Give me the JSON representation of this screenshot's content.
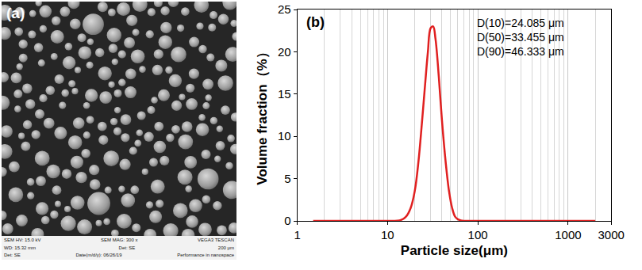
{
  "image_panel": {
    "label": "(a)",
    "type": "image",
    "info_bar": [
      [
        "SEM HV: 15.0 kV",
        "SEM MAG: 300 x",
        "VEGA3 TESCAN"
      ],
      [
        "WD: 15.32 mm",
        "Det: SE",
        "200 μm"
      ],
      [
        "Det: SE",
        "Date(m/d/y): 06/26/19",
        "Performance in nanospace"
      ]
    ]
  },
  "chart_data": {
    "type": "line",
    "title": "(b)",
    "x_label": "Particle size(μm)",
    "y_label": "Volume fraction（%）",
    "annotations": [
      "D(10)=24.085 μm",
      "D(50)=33.455 μm",
      "D(90)=46.333 μm"
    ],
    "x": [
      1.5,
      5,
      10,
      14,
      16,
      18,
      20,
      22,
      24,
      26,
      28,
      30,
      32,
      34,
      37,
      40,
      44,
      48,
      52,
      56,
      60,
      65,
      70,
      100,
      500,
      2000
    ],
    "values": [
      0,
      0,
      0,
      0.1,
      0.5,
      1.5,
      3.5,
      7,
      11.5,
      16,
      20,
      22.8,
      23,
      21.5,
      17,
      12,
      7,
      3.5,
      1.5,
      0.5,
      0.2,
      0.05,
      0,
      0,
      0,
      0
    ],
    "color": "#e02020",
    "line_style": "solid",
    "log": "x",
    "grid": true,
    "xlim": [
      1,
      3000
    ],
    "xticks": [
      1,
      10,
      100,
      1000,
      3000
    ],
    "ylim": [
      0,
      25
    ],
    "yticks": [
      0,
      5,
      10,
      15,
      20,
      25
    ]
  }
}
